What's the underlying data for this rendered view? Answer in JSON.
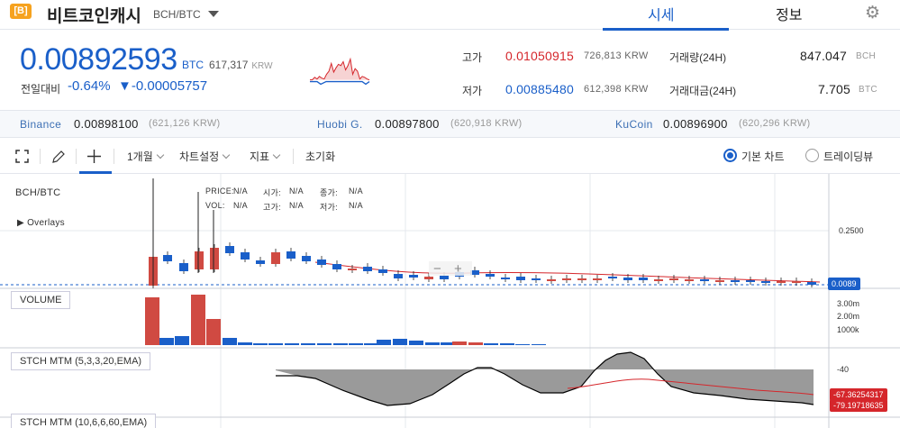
{
  "header": {
    "logo_text": "[B]",
    "coin_name": "비트코인캐시",
    "pair": "BCH/BTC",
    "tabs": [
      "시세",
      "정보"
    ]
  },
  "price": {
    "value": "0.00892593",
    "unit": "BTC",
    "krw": "617,317",
    "krw_unit": "KRW",
    "change_label": "전일대비",
    "change_pct": "-0.64%",
    "change_val": "▼-0.00005757",
    "sparkline": [
      0.68,
      0.68,
      0.62,
      0.66,
      0.6,
      0.64,
      0.66,
      0.55,
      0.48,
      0.3,
      0.5,
      0.4,
      0.32,
      0.35,
      0.26,
      0.45,
      0.35,
      0.2,
      0.55,
      0.42,
      0.48,
      0.66,
      0.6,
      0.62,
      0.66,
      0.68
    ]
  },
  "stats": {
    "high_label": "고가",
    "high_val": "0.01050915",
    "high_krw": "726,813 KRW",
    "low_label": "저가",
    "low_val": "0.00885480",
    "low_krw": "612,398 KRW",
    "vol_label": "거래량(24H)",
    "vol_val": "847.047",
    "vol_unit": "BCH",
    "amt_label": "거래대금(24H)",
    "amt_val": "7.705",
    "amt_unit": "BTC"
  },
  "exchanges": [
    {
      "name": "Binance",
      "value": "0.00898100",
      "krw": "(621,126 KRW)"
    },
    {
      "name": "Huobi G.",
      "value": "0.00897800",
      "krw": "(620,918 KRW)"
    },
    {
      "name": "KuCoin",
      "value": "0.00896900",
      "krw": "(620,296 KRW)"
    }
  ],
  "toolbar": {
    "period": "1개월",
    "settings": "차트설정",
    "indicators": "지표",
    "reset": "초기화",
    "basic_chart": "기본 차트",
    "tradingview": "트레이딩뷰",
    "selected_mode": "기본 차트"
  },
  "chart": {
    "symbol": "BCH/BTC",
    "overlays": "▶ Overlays",
    "info": {
      "price_label": "PRICE:",
      "price_val": "N/A",
      "open_label": "시가:",
      "open_val": "N/A",
      "close_label": "종가:",
      "close_val": "N/A",
      "vol_label": "VOL:",
      "vol_val": "N/A",
      "high_label": "고가:",
      "high_val": "N/A",
      "low_label": "저가:",
      "low_val": "N/A"
    },
    "price_axis": [
      "0.2500"
    ],
    "last_price_flag": "0.0089",
    "volume_label": "VOLUME",
    "volume_axis": [
      "3.00m",
      "2.00m",
      "1000k"
    ],
    "stch1_label": "STCH MTM (5,3,3,20,EMA)",
    "stch1_axis": "-40",
    "stch1_flag_red": "-67.36254317",
    "stch1_flag_black": "-79.19718635",
    "stch2_label": "STCH MTM (10,6,6,60,EMA)",
    "colors": {
      "up": "#d04a42",
      "down": "#1a5fc9",
      "accent": "#1a5fc9"
    }
  }
}
